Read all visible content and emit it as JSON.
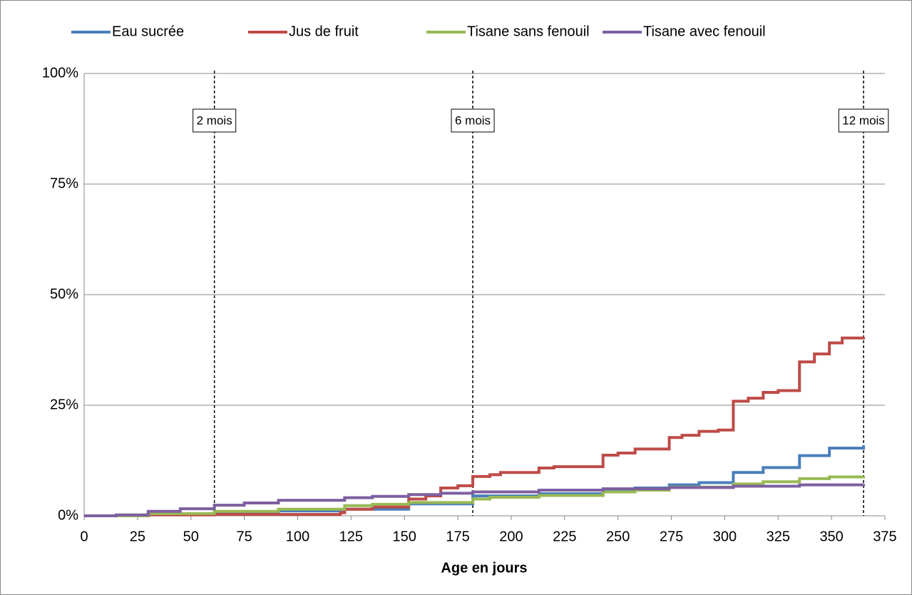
{
  "chart_data": {
    "type": "line",
    "step": "post",
    "xlabel": "Age en jours",
    "xlim": [
      0,
      375
    ],
    "xticks": [
      0,
      25,
      50,
      75,
      100,
      125,
      150,
      175,
      200,
      225,
      250,
      275,
      300,
      325,
      350,
      375
    ],
    "ylim": [
      0,
      100
    ],
    "yticks": [
      {
        "value": 0,
        "label": "0%"
      },
      {
        "value": 25,
        "label": "25%"
      },
      {
        "value": 50,
        "label": "50%"
      },
      {
        "value": 75,
        "label": "75%"
      },
      {
        "value": 100,
        "label": "100%"
      }
    ],
    "grid": true,
    "legend": "top",
    "annotations": [
      {
        "x": 61,
        "label": "2 mois"
      },
      {
        "x": 182,
        "label": "6 mois"
      },
      {
        "x": 365,
        "label": "12 mois"
      }
    ],
    "series": [
      {
        "name": "Eau sucrée",
        "color": "#4a7ebb",
        "x": [
          0,
          30,
          61,
          91,
          122,
          152,
          182,
          213,
          243,
          258,
          274,
          288,
          304,
          318,
          335,
          349,
          365
        ],
        "values": [
          0,
          0.3,
          0.7,
          1.1,
          1.5,
          2.7,
          4.5,
          5.0,
          5.8,
          6.3,
          7.0,
          7.5,
          9.8,
          10.9,
          13.6,
          15.3,
          15.9
        ]
      },
      {
        "name": "Jus de fruit",
        "color": "#be4b48",
        "x": [
          0,
          30,
          61,
          120,
          122,
          135,
          152,
          160,
          167,
          175,
          182,
          190,
          195,
          213,
          220,
          243,
          250,
          258,
          274,
          280,
          288,
          297,
          304,
          311,
          318,
          325,
          335,
          342,
          349,
          355,
          365
        ],
        "values": [
          0,
          0.2,
          0.3,
          0.7,
          1.5,
          2.0,
          3.8,
          4.5,
          6.3,
          6.8,
          8.9,
          9.3,
          9.8,
          10.8,
          11.1,
          13.7,
          14.2,
          15.1,
          17.7,
          18.2,
          19.1,
          19.4,
          25.9,
          26.6,
          27.9,
          28.3,
          34.8,
          36.6,
          39.1,
          40.2,
          40.4
        ]
      },
      {
        "name": "Tisane sans fenouil",
        "color": "#98b954",
        "x": [
          0,
          30,
          61,
          91,
          122,
          135,
          152,
          182,
          190,
          213,
          243,
          258,
          274,
          304,
          318,
          335,
          349,
          365
        ],
        "values": [
          0,
          0.5,
          1.0,
          1.5,
          2.3,
          2.6,
          3.0,
          3.8,
          4.2,
          4.6,
          5.4,
          5.8,
          6.5,
          7.2,
          7.7,
          8.4,
          8.8,
          8.9
        ]
      },
      {
        "name": "Tisane avec fenouil",
        "color": "#7d5fa0",
        "x": [
          0,
          15,
          30,
          45,
          61,
          75,
          91,
          122,
          135,
          152,
          167,
          182,
          213,
          243,
          274,
          304,
          335,
          365
        ],
        "values": [
          0,
          0.2,
          1.0,
          1.6,
          2.4,
          2.9,
          3.5,
          4.1,
          4.4,
          4.8,
          5.1,
          5.4,
          5.8,
          6.1,
          6.4,
          6.7,
          7.0,
          7.2
        ]
      }
    ]
  }
}
